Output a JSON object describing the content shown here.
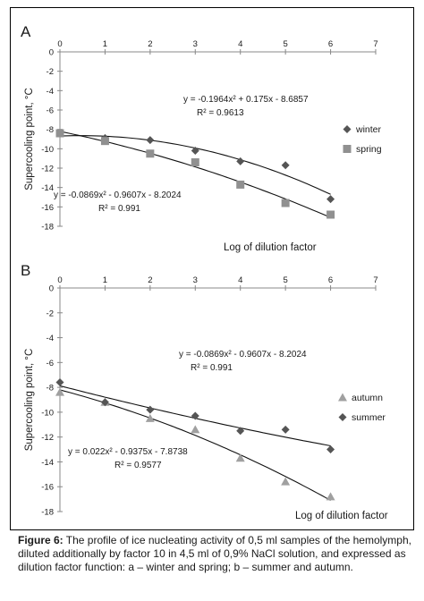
{
  "chart_data": [
    {
      "panel_letter": "A",
      "type": "scatter",
      "ylabel": "Supercooling point, °C",
      "xlabel": "Log of  dilution factor",
      "xlim": [
        0,
        7
      ],
      "ylim": [
        -18,
        0
      ],
      "x_ticks": [
        "0",
        "1",
        "2",
        "3",
        "4",
        "5",
        "6",
        "7"
      ],
      "y_ticks": [
        "0",
        "-2",
        "-4",
        "-6",
        "-8",
        "-10",
        "-12",
        "-14",
        "-16",
        "-18"
      ],
      "legend_position": "right",
      "series": [
        {
          "name": "winter",
          "marker": "diamond",
          "color": "#555555",
          "x": [
            0,
            1,
            2,
            3,
            4,
            5,
            6
          ],
          "y": [
            -8.4,
            -8.9,
            -9.1,
            -10.2,
            -11.3,
            -11.7,
            -15.2
          ],
          "trend": {
            "a": -0.1964,
            "b": 0.175,
            "c": -8.6857
          },
          "equation": "y = -0.1964x² + 0.175x - 8.6857",
          "r2": "R² = 0.9613"
        },
        {
          "name": "spring",
          "marker": "square",
          "color": "#909090",
          "x": [
            0,
            1,
            2,
            3,
            4,
            5,
            6
          ],
          "y": [
            -8.4,
            -9.2,
            -10.5,
            -11.4,
            -13.7,
            -15.6,
            -16.8
          ],
          "trend": {
            "a": -0.0869,
            "b": -0.9607,
            "c": -8.2024
          },
          "equation": "y = -0.0869x² - 0.9607x - 8.2024",
          "r2": "R² = 0.991"
        }
      ]
    },
    {
      "panel_letter": "B",
      "type": "scatter",
      "ylabel": "Supercooling point,  °C",
      "xlabel": "Log of dilution factor",
      "xlim": [
        0,
        7
      ],
      "ylim": [
        -18,
        0
      ],
      "x_ticks": [
        "0",
        "1",
        "2",
        "3",
        "4",
        "5",
        "6",
        "7"
      ],
      "y_ticks": [
        "0",
        "-2",
        "-4",
        "-6",
        "-8",
        "-10",
        "-12",
        "-14",
        "-16",
        "-18"
      ],
      "legend_position": "right",
      "series": [
        {
          "name": "autumn",
          "marker": "triangle",
          "color": "#a0a0a0",
          "x": [
            0,
            1,
            2,
            3,
            4,
            5,
            6
          ],
          "y": [
            -8.4,
            -9.2,
            -10.5,
            -11.4,
            -13.7,
            -15.6,
            -16.8
          ],
          "trend": {
            "a": -0.0869,
            "b": -0.9607,
            "c": -8.2024
          },
          "equation": "y = -0.0869x² - 0.9607x - 8.2024",
          "r2": "R² = 0.991"
        },
        {
          "name": "summer",
          "marker": "diamond",
          "color": "#555555",
          "x": [
            0,
            1,
            2,
            3,
            4,
            5,
            6
          ],
          "y": [
            -7.6,
            -9.2,
            -9.8,
            -10.3,
            -11.5,
            -11.4,
            -13.0
          ],
          "trend": {
            "a": 0.022,
            "b": -0.9375,
            "c": -7.8738
          },
          "equation": "y = 0.022x² - 0.9375x - 7.8738",
          "r2": "R² = 0.9577"
        }
      ]
    }
  ],
  "caption": {
    "label": "Figure   6:",
    "text": " The profile of ice nucleating activity of 0,5 ml samples of the hemolymph, diluted additionally by factor 10 in 4,5 ml of 0,9%  NaCl solution, and expressed as dilution factor function: a – winter and spring; b – summer and autumn."
  }
}
